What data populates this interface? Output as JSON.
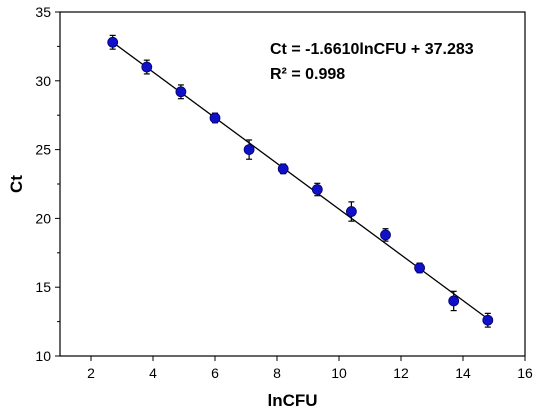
{
  "chart_data": {
    "type": "scatter",
    "title": "",
    "xlabel": "lnCFU",
    "ylabel": "Ct",
    "xlim": [
      1,
      16
    ],
    "ylim": [
      10,
      35
    ],
    "xticks": [
      2,
      4,
      6,
      8,
      10,
      12,
      14,
      16
    ],
    "yticks": [
      10,
      15,
      20,
      25,
      30,
      35
    ],
    "grid": false,
    "annotations": {
      "equation": "Ct = -1.6610lnCFU + 37.283",
      "r2": "R² = 0.998"
    },
    "fit_line": {
      "slope": -1.661,
      "intercept": 37.283
    },
    "points": [
      {
        "x": 2.7,
        "y": 32.8,
        "err": 0.5
      },
      {
        "x": 3.8,
        "y": 31.0,
        "err": 0.5
      },
      {
        "x": 4.9,
        "y": 29.2,
        "err": 0.5
      },
      {
        "x": 6.0,
        "y": 27.3,
        "err": 0.35
      },
      {
        "x": 7.1,
        "y": 25.0,
        "err": 0.7
      },
      {
        "x": 8.2,
        "y": 23.6,
        "err": 0.35
      },
      {
        "x": 9.3,
        "y": 22.1,
        "err": 0.45
      },
      {
        "x": 10.4,
        "y": 20.5,
        "err": 0.7
      },
      {
        "x": 11.5,
        "y": 18.8,
        "err": 0.45
      },
      {
        "x": 12.6,
        "y": 16.4,
        "err": 0.35
      },
      {
        "x": 13.7,
        "y": 14.0,
        "err": 0.7
      },
      {
        "x": 14.8,
        "y": 12.6,
        "err": 0.5
      }
    ],
    "colors": {
      "marker": "#1010c8",
      "marker_edge": "#000070",
      "line": "#000000"
    }
  }
}
